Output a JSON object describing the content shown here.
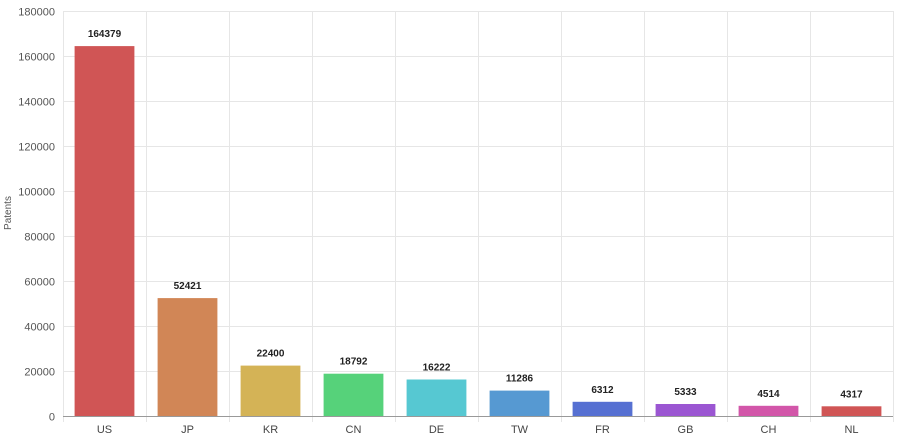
{
  "chart_data": {
    "type": "bar",
    "categories": [
      "US",
      "JP",
      "KR",
      "CN",
      "DE",
      "TW",
      "FR",
      "GB",
      "CH",
      "NL"
    ],
    "values": [
      164379,
      52421,
      22400,
      18792,
      16222,
      11286,
      6312,
      5333,
      4514,
      4317
    ],
    "colors": [
      "#d05555",
      "#d18656",
      "#d4b356",
      "#56d27a",
      "#56c8d2",
      "#5699d2",
      "#5670d2",
      "#9b56d2",
      "#d256a9",
      "#d05555"
    ],
    "title": "",
    "xlabel": "",
    "ylabel": "Patents",
    "ylim": [
      0,
      180000
    ],
    "yticks": [
      0,
      20000,
      40000,
      60000,
      80000,
      100000,
      120000,
      140000,
      160000,
      180000
    ],
    "grid": true,
    "legend": "none"
  }
}
